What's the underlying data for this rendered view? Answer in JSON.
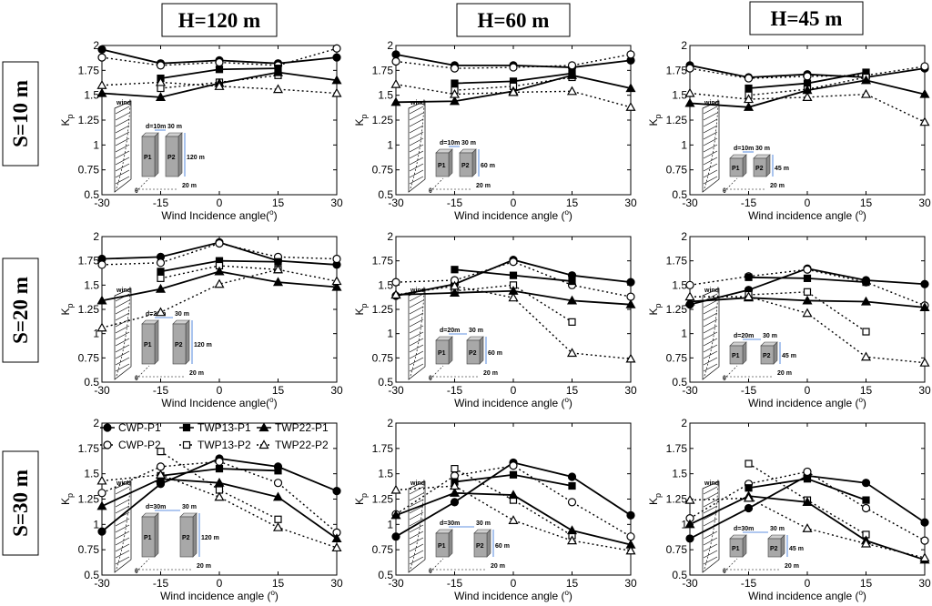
{
  "column_headers": [
    "H=120 m",
    "H=60 m",
    "H=45 m"
  ],
  "row_headers": [
    "S=10 m",
    "S=20 m",
    "S=30 m"
  ],
  "ylabel": "K",
  "ylabel_sub": "p",
  "xlabel_suffix": "o",
  "legend": {
    "entries": [
      {
        "label": "CWP-P1",
        "marker": "circle",
        "filled": true,
        "dash": false
      },
      {
        "label": "CWP-P2",
        "marker": "circle",
        "filled": false,
        "dash": true
      },
      {
        "label": "TWP13-P1",
        "marker": "square",
        "filled": true,
        "dash": false
      },
      {
        "label": "TWP13-P2",
        "marker": "square",
        "filled": false,
        "dash": true
      },
      {
        "label": "TWP22-P1",
        "marker": "triangle",
        "filled": true,
        "dash": false
      },
      {
        "label": "TWP22-P2",
        "marker": "triangle",
        "filled": false,
        "dash": true
      }
    ]
  },
  "chart_data": [
    {
      "type": "line",
      "row": 0,
      "col": 0,
      "xlabel": "Wind Incidence angle(",
      "x": [
        -30,
        -15,
        0,
        15,
        30
      ],
      "xticks": [
        "-30",
        "-15",
        "0",
        "15",
        "30"
      ],
      "ylim": [
        0.5,
        2
      ],
      "yticks": [
        "0.5",
        "0.75",
        "1",
        "1.25",
        "1.5",
        "1.75",
        "2"
      ],
      "inset": {
        "wind": "wind",
        "d": "d=10m",
        "w": "30 m",
        "h": "120 m",
        "base": "20 m",
        "p1": "P1",
        "p2": "P2",
        "theta": "θ"
      },
      "series": [
        {
          "name": "CWP-P1",
          "values": [
            1.96,
            1.82,
            1.85,
            1.82,
            1.88
          ]
        },
        {
          "name": "CWP-P2",
          "values": [
            1.88,
            1.8,
            1.83,
            1.8,
            1.97
          ]
        },
        {
          "name": "TWP13-P1",
          "values": [
            null,
            1.67,
            1.76,
            1.77,
            null
          ]
        },
        {
          "name": "TWP13-P2",
          "values": [
            null,
            1.57,
            1.63,
            1.7,
            null
          ]
        },
        {
          "name": "TWP22-P1",
          "values": [
            1.52,
            1.48,
            1.62,
            1.73,
            1.65
          ]
        },
        {
          "name": "TWP22-P2",
          "values": [
            1.6,
            1.63,
            1.59,
            1.56,
            1.52
          ]
        }
      ]
    },
    {
      "type": "line",
      "row": 0,
      "col": 1,
      "xlabel": "Wind incidence angle (",
      "x": [
        -30,
        -15,
        0,
        15,
        30
      ],
      "xticks": [
        "-30",
        "-15",
        "0",
        "15",
        "30"
      ],
      "ylim": [
        0.5,
        2
      ],
      "yticks": [
        "0.5",
        "0.75",
        "1",
        "1.25",
        "1.5",
        "1.75",
        "2"
      ],
      "inset": {
        "wind": "wind",
        "d": "d=10m",
        "w": "30 m",
        "h": "60 m",
        "base": "20 m",
        "p1": "P1",
        "p2": "P2",
        "theta": "θ"
      },
      "series": [
        {
          "name": "CWP-P1",
          "values": [
            1.91,
            1.8,
            1.8,
            1.78,
            1.85
          ]
        },
        {
          "name": "CWP-P2",
          "values": [
            1.84,
            1.77,
            1.78,
            1.8,
            1.91
          ]
        },
        {
          "name": "TWP13-P1",
          "values": [
            null,
            1.62,
            1.64,
            1.72,
            null
          ]
        },
        {
          "name": "TWP13-P2",
          "values": [
            null,
            1.55,
            1.59,
            1.68,
            null
          ]
        },
        {
          "name": "TWP22-P1",
          "values": [
            1.43,
            1.44,
            1.54,
            1.7,
            1.57
          ]
        },
        {
          "name": "TWP22-P2",
          "values": [
            1.61,
            1.51,
            1.53,
            1.54,
            1.38
          ]
        }
      ]
    },
    {
      "type": "line",
      "row": 0,
      "col": 2,
      "xlabel": "Wind incidence angle (",
      "x": [
        -30,
        -15,
        0,
        15,
        30
      ],
      "xticks": [
        "-30",
        "-15",
        "0",
        "15",
        "30"
      ],
      "ylim": [
        0.5,
        2
      ],
      "yticks": [
        "0.5",
        "0.75",
        "1",
        "1.25",
        "1.5",
        "1.75",
        "2"
      ],
      "inset": {
        "wind": "wind",
        "d": "d=10m",
        "w": "30 m",
        "h": "45 m",
        "base": "20 m",
        "p1": "P1",
        "p2": "P2",
        "theta": "θ"
      },
      "series": [
        {
          "name": "CWP-P1",
          "values": [
            1.8,
            1.68,
            1.71,
            1.68,
            1.77
          ]
        },
        {
          "name": "CWP-P2",
          "values": [
            1.77,
            1.67,
            1.69,
            1.7,
            1.79
          ]
        },
        {
          "name": "TWP13-P1",
          "values": [
            null,
            1.57,
            1.62,
            1.73,
            null
          ]
        },
        {
          "name": "TWP13-P2",
          "values": [
            null,
            1.5,
            1.56,
            1.68,
            null
          ]
        },
        {
          "name": "TWP22-P1",
          "values": [
            1.42,
            1.38,
            1.55,
            1.65,
            1.51
          ]
        },
        {
          "name": "TWP22-P2",
          "values": [
            1.52,
            1.46,
            1.48,
            1.51,
            1.23
          ]
        }
      ]
    },
    {
      "type": "line",
      "row": 1,
      "col": 0,
      "xlabel": "Wind Incidence angle(",
      "x": [
        -30,
        -15,
        0,
        15,
        30
      ],
      "xticks": [
        "-30",
        "-15",
        "0",
        "15",
        "30"
      ],
      "ylim": [
        0.5,
        2
      ],
      "yticks": [
        "0.5",
        "0.75",
        "1",
        "1.25",
        "1.5",
        "1.75",
        "2"
      ],
      "inset": {
        "wind": "wind",
        "d": "d=20m",
        "w": "30 m",
        "h": "120 m",
        "base": "20 m",
        "p1": "P1",
        "p2": "P2",
        "theta": "θ"
      },
      "series": [
        {
          "name": "CWP-P1",
          "values": [
            1.77,
            1.79,
            1.94,
            1.75,
            1.71
          ]
        },
        {
          "name": "CWP-P2",
          "values": [
            1.71,
            1.73,
            1.93,
            1.79,
            1.77
          ]
        },
        {
          "name": "TWP13-P1",
          "values": [
            null,
            1.64,
            1.75,
            1.74,
            null
          ]
        },
        {
          "name": "TWP13-P2",
          "values": [
            null,
            1.57,
            1.7,
            1.66,
            null
          ]
        },
        {
          "name": "TWP22-P1",
          "values": [
            1.34,
            1.46,
            1.64,
            1.53,
            1.48
          ]
        },
        {
          "name": "TWP22-P2",
          "values": [
            1.06,
            1.22,
            1.51,
            1.66,
            1.54
          ]
        }
      ]
    },
    {
      "type": "line",
      "row": 1,
      "col": 1,
      "xlabel": "Wind incidence angle (",
      "x": [
        -30,
        -15,
        0,
        15,
        30
      ],
      "xticks": [
        "-30",
        "-15",
        "0",
        "15",
        "30"
      ],
      "ylim": [
        0.5,
        2
      ],
      "yticks": [
        "0.5",
        "0.75",
        "1",
        "1.25",
        "1.5",
        "1.75",
        "2"
      ],
      "inset": {
        "wind": "wind",
        "d": "d=20m",
        "w": "30 m",
        "h": "60 m",
        "base": "20 m",
        "p1": "P1",
        "p2": "P2",
        "theta": "θ"
      },
      "series": [
        {
          "name": "CWP-P1",
          "values": [
            1.39,
            1.51,
            1.76,
            1.6,
            1.53
          ]
        },
        {
          "name": "CWP-P2",
          "values": [
            1.53,
            1.55,
            1.74,
            1.5,
            1.38
          ]
        },
        {
          "name": "TWP13-P1",
          "values": [
            null,
            1.66,
            1.6,
            1.54,
            null
          ]
        },
        {
          "name": "TWP13-P2",
          "values": [
            null,
            1.44,
            1.5,
            1.12,
            null
          ]
        },
        {
          "name": "TWP22-P1",
          "values": [
            1.4,
            1.42,
            1.44,
            1.34,
            1.3
          ]
        },
        {
          "name": "TWP22-P2",
          "values": [
            1.4,
            1.49,
            1.37,
            0.8,
            0.74
          ]
        }
      ]
    },
    {
      "type": "line",
      "row": 1,
      "col": 2,
      "xlabel": "Wind incidence angle (",
      "x": [
        -30,
        -15,
        0,
        15,
        30
      ],
      "xticks": [
        "-30",
        "-15",
        "0",
        "15",
        "30"
      ],
      "ylim": [
        0.5,
        2
      ],
      "yticks": [
        "0.5",
        "0.75",
        "1",
        "1.25",
        "1.5",
        "1.75",
        "2"
      ],
      "inset": {
        "wind": "wind",
        "d": "d=20m",
        "w": "30 m",
        "h": "45 m",
        "base": "20 m",
        "p1": "P1",
        "p2": "P2",
        "theta": "θ"
      },
      "series": [
        {
          "name": "CWP-P1",
          "values": [
            1.3,
            1.45,
            1.67,
            1.55,
            1.51
          ]
        },
        {
          "name": "CWP-P2",
          "values": [
            1.5,
            1.59,
            1.66,
            1.53,
            1.29
          ]
        },
        {
          "name": "TWP13-P1",
          "values": [
            null,
            1.58,
            1.57,
            1.53,
            null
          ]
        },
        {
          "name": "TWP13-P2",
          "values": [
            null,
            1.4,
            1.43,
            1.02,
            null
          ]
        },
        {
          "name": "TWP22-P1",
          "values": [
            1.33,
            1.37,
            1.34,
            1.33,
            1.27
          ]
        },
        {
          "name": "TWP22-P2",
          "values": [
            1.38,
            1.38,
            1.21,
            0.76,
            0.7
          ]
        }
      ]
    },
    {
      "type": "line",
      "row": 2,
      "col": 0,
      "xlabel": "Wind incidence angle (",
      "x": [
        -30,
        -15,
        0,
        15,
        30
      ],
      "xticks": [
        "-30",
        "-15",
        "0",
        "15",
        "30"
      ],
      "ylim": [
        0.5,
        2
      ],
      "yticks": [
        "0.5",
        "0.75",
        "1",
        "1.25",
        "1.5",
        "1.75",
        "2"
      ],
      "inset": {
        "wind": "wind",
        "d": "d=30m",
        "w": "30 m",
        "h": "120 m",
        "base": "20 m",
        "p1": "P1",
        "p2": "P2",
        "theta": "θ"
      },
      "series": [
        {
          "name": "CWP-P1",
          "values": [
            0.93,
            1.4,
            1.65,
            1.57,
            1.33
          ]
        },
        {
          "name": "CWP-P2",
          "values": [
            1.31,
            1.57,
            1.62,
            1.41,
            0.92
          ]
        },
        {
          "name": "TWP13-P1",
          "values": [
            null,
            1.48,
            1.55,
            1.53,
            null
          ]
        },
        {
          "name": "TWP13-P2",
          "values": [
            null,
            1.72,
            1.34,
            1.05,
            null
          ]
        },
        {
          "name": "TWP22-P1",
          "values": [
            1.18,
            1.45,
            1.41,
            1.27,
            0.86
          ]
        },
        {
          "name": "TWP22-P2",
          "values": [
            1.43,
            1.49,
            1.27,
            0.97,
            0.77
          ]
        }
      ]
    },
    {
      "type": "line",
      "row": 2,
      "col": 1,
      "xlabel": "Wind incidence angle (",
      "x": [
        -30,
        -15,
        0,
        15,
        30
      ],
      "xticks": [
        "-30",
        "-15",
        "0",
        "15",
        "30"
      ],
      "ylim": [
        0.5,
        2
      ],
      "yticks": [
        "0.5",
        "0.75",
        "1",
        "1.25",
        "1.5",
        "1.75",
        "2"
      ],
      "inset": {
        "wind": "wind",
        "d": "d=30m",
        "w": "30 m",
        "h": "60 m",
        "base": "20 m",
        "p1": "P1",
        "p2": "P2",
        "theta": "θ"
      },
      "series": [
        {
          "name": "CWP-P1",
          "values": [
            0.88,
            1.22,
            1.61,
            1.47,
            1.09
          ]
        },
        {
          "name": "CWP-P2",
          "values": [
            1.1,
            1.48,
            1.58,
            1.22,
            0.88
          ]
        },
        {
          "name": "TWP13-P1",
          "values": [
            null,
            1.42,
            1.49,
            1.38,
            null
          ]
        },
        {
          "name": "TWP13-P2",
          "values": [
            null,
            1.55,
            1.24,
            0.89,
            null
          ]
        },
        {
          "name": "TWP22-P1",
          "values": [
            1.09,
            1.31,
            1.29,
            0.94,
            0.8
          ]
        },
        {
          "name": "TWP22-P2",
          "values": [
            1.34,
            1.38,
            1.04,
            0.84,
            0.74
          ]
        }
      ]
    },
    {
      "type": "line",
      "row": 2,
      "col": 2,
      "xlabel": "Wind incidence angle (",
      "x": [
        -30,
        -15,
        0,
        15,
        30
      ],
      "xticks": [
        "-30",
        "-15",
        "0",
        "15",
        "30"
      ],
      "ylim": [
        0.5,
        2
      ],
      "yticks": [
        "0.5",
        "0.75",
        "1",
        "1.25",
        "1.5",
        "1.75",
        "2"
      ],
      "inset": {
        "wind": "wind",
        "d": "d=30m",
        "w": "30 m",
        "h": "45 m",
        "base": "20 m",
        "p1": "P1",
        "p2": "P2",
        "theta": "θ"
      },
      "series": [
        {
          "name": "CWP-P1",
          "values": [
            0.86,
            1.16,
            1.48,
            1.41,
            1.02
          ]
        },
        {
          "name": "CWP-P2",
          "values": [
            1.06,
            1.4,
            1.52,
            1.16,
            0.84
          ]
        },
        {
          "name": "TWP13-P1",
          "values": [
            null,
            1.36,
            1.45,
            1.24,
            null
          ]
        },
        {
          "name": "TWP13-P2",
          "values": [
            null,
            1.6,
            1.24,
            0.9,
            null
          ]
        },
        {
          "name": "TWP22-P1",
          "values": [
            1.0,
            1.28,
            1.22,
            0.84,
            0.65
          ]
        },
        {
          "name": "TWP22-P2",
          "values": [
            1.24,
            1.26,
            0.96,
            0.81,
            0.67
          ]
        }
      ]
    }
  ]
}
